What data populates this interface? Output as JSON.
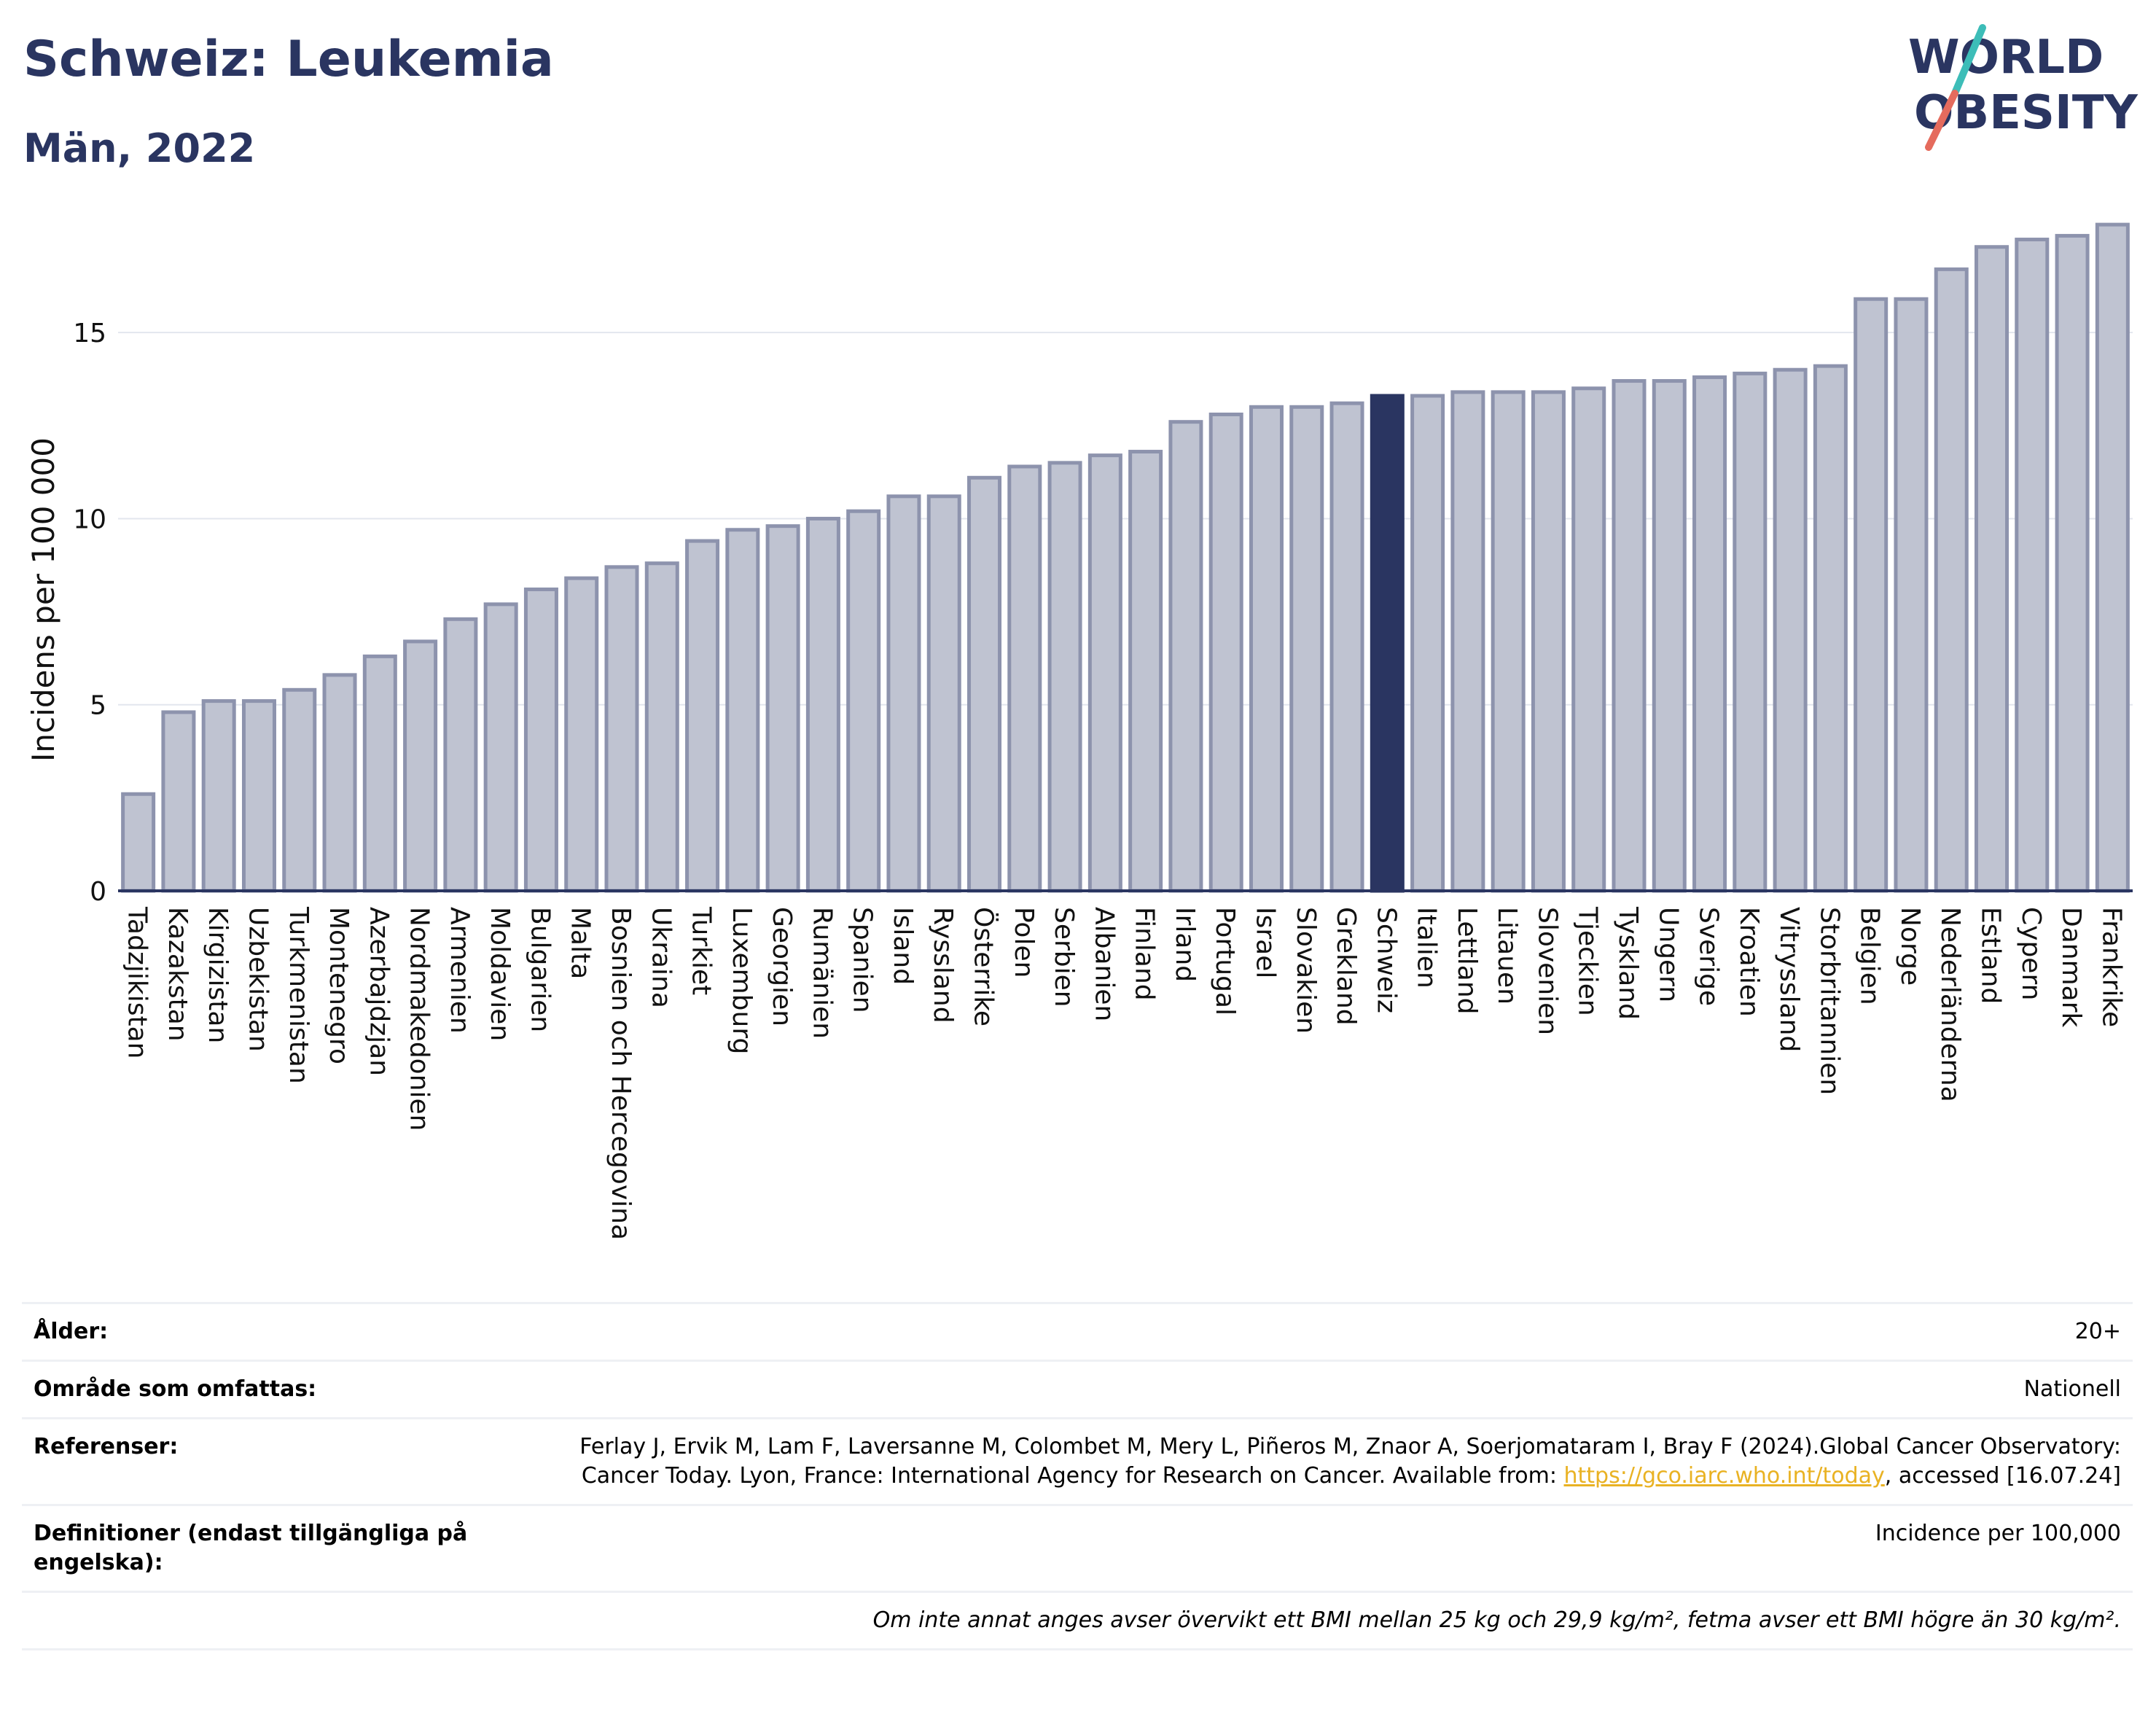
{
  "header": {
    "title": "Schweiz: Leukemia",
    "subtitle": "Män, 2022"
  },
  "logo": {
    "line1": "WORLD",
    "line2": "OBESITY"
  },
  "colors": {
    "bar": "#bfc3d1",
    "bar_border": "#8d93ad",
    "highlight": "#2a3561",
    "title": "#2a3561",
    "link": "#e9b223"
  },
  "chart_data": {
    "type": "bar",
    "ylabel": "Incidens per 100 000",
    "ylim": [
      0,
      18
    ],
    "yticks": [
      0,
      5,
      10,
      15
    ],
    "grid": true,
    "highlight": "Schweiz",
    "categories": [
      "Tadzjikistan",
      "Kazakstan",
      "Kirgizistan",
      "Uzbekistan",
      "Turkmenistan",
      "Montenegro",
      "Azerbajdzjan",
      "Nordmakedonien",
      "Armenien",
      "Moldavien",
      "Bulgarien",
      "Malta",
      "Bosnien och Hercegovina",
      "Ukraina",
      "Turkiet",
      "Luxemburg",
      "Georgien",
      "Rumänien",
      "Spanien",
      "Island",
      "Ryssland",
      "Österrike",
      "Polen",
      "Serbien",
      "Albanien",
      "Finland",
      "Irland",
      "Portugal",
      "Israel",
      "Slovakien",
      "Grekland",
      "Schweiz",
      "Italien",
      "Lettland",
      "Litauen",
      "Slovenien",
      "Tjeckien",
      "Tyskland",
      "Ungern",
      "Sverige",
      "Kroatien",
      "Vitryssland",
      "Storbritannien",
      "Belgien",
      "Norge",
      "Nederländerna",
      "Estland",
      "Cypern",
      "Danmark",
      "Frankrike"
    ],
    "values": [
      2.6,
      4.8,
      5.1,
      5.1,
      5.4,
      5.8,
      6.3,
      6.7,
      7.3,
      7.7,
      8.1,
      8.4,
      8.7,
      8.8,
      9.4,
      9.7,
      9.8,
      10.0,
      10.2,
      10.6,
      10.6,
      11.1,
      11.4,
      11.5,
      11.7,
      11.8,
      12.6,
      12.8,
      13.0,
      13.0,
      13.1,
      13.3,
      13.3,
      13.4,
      13.4,
      13.4,
      13.5,
      13.7,
      13.7,
      13.8,
      13.9,
      14.0,
      14.1,
      15.9,
      15.9,
      16.7,
      17.3,
      17.5,
      17.6,
      17.9
    ]
  },
  "meta": {
    "age_label": "Ålder:",
    "age_value": "20+",
    "area_label": "Område som omfattas:",
    "area_value": "Nationell",
    "ref_label": "Referenser:",
    "ref_text1": "Ferlay J, Ervik M, Lam F, Laversanne M, Colombet M, Mery L, Piñeros M, Znaor A, Soerjomataram I, Bray F (2024).Global Cancer Observatory: Cancer Today. Lyon, France: International Agency for Research on Cancer. Available from: ",
    "ref_link": "https://gco.iarc.who.int/today",
    "ref_text2": ", accessed [16.07.24]",
    "def_label": "Definitioner (endast tillgängliga på engelska):",
    "def_value": "Incidence per 100,000",
    "note": "Om inte annat anges avser övervikt ett BMI mellan 25 kg och 29,9 kg/m², fetma avser ett BMI högre än 30 kg/m²."
  }
}
